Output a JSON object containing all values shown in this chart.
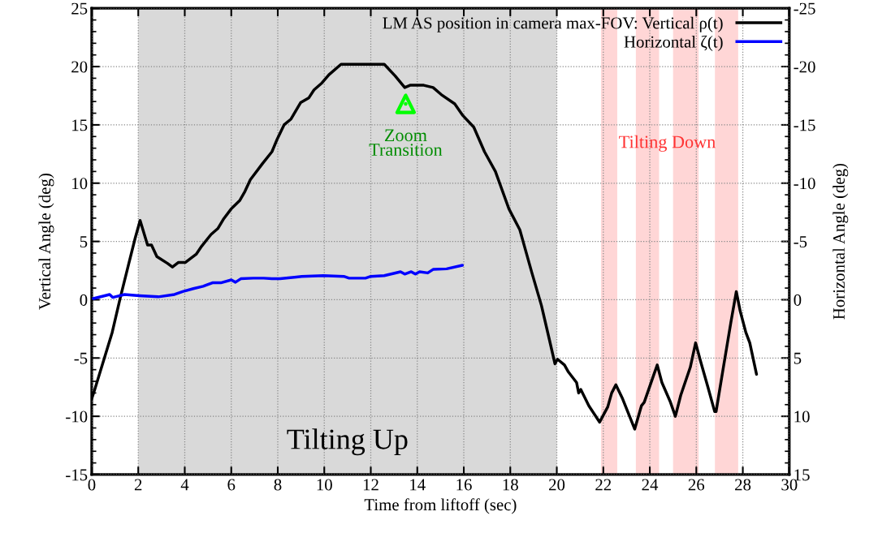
{
  "chart_data": {
    "type": "line",
    "xlabel": "Time from liftoff (sec)",
    "ylabel": "Vertical Angle (deg)",
    "y2label": "Horizontal Angle (deg)",
    "xlim": [
      0,
      30
    ],
    "xticks": [
      0,
      2,
      4,
      6,
      8,
      10,
      12,
      14,
      16,
      18,
      20,
      22,
      24,
      26,
      28,
      30
    ],
    "ylim": [
      -15,
      25
    ],
    "yticks": [
      -15,
      -10,
      -5,
      0,
      5,
      10,
      15,
      20,
      25
    ],
    "y2lim": [
      15,
      -25
    ],
    "y2ticks": [
      -25,
      -20,
      -15,
      -10,
      -5,
      0,
      5,
      10,
      15
    ],
    "grid": true,
    "legend": "top right",
    "line_style": "solid",
    "series": [
      {
        "name": "LM AS position in camera max-FOV: Vertical ρ(t)",
        "color": "#000000",
        "x": [
          0,
          0.13,
          0.88,
          1.23,
          1.58,
          1.87,
          2.08,
          2.4,
          2.57,
          2.8,
          3.27,
          3.47,
          3.73,
          4.03,
          4.49,
          4.73,
          5.13,
          5.42,
          5.66,
          6.0,
          6.36,
          6.59,
          6.82,
          7.35,
          7.75,
          7.98,
          8.27,
          8.57,
          8.98,
          9.33,
          9.56,
          9.9,
          10.2,
          10.72,
          12.58,
          13.05,
          13.46,
          13.69,
          14.05,
          14.28,
          14.68,
          15.03,
          15.61,
          15.96,
          16.43,
          16.89,
          17.36,
          17.94,
          18.41,
          18.93,
          19.34,
          19.69,
          19.92,
          20.03,
          20.33,
          20.5,
          20.85,
          20.94,
          21.03,
          21.38,
          21.84,
          22.19,
          22.36,
          22.54,
          22.83,
          23.35,
          23.64,
          23.76,
          24.16,
          24.32,
          24.52,
          24.87,
          25.1,
          25.33,
          25.74,
          25.97,
          26.2,
          26.5,
          26.79,
          26.85,
          27.14,
          27.49,
          27.72,
          27.89,
          28.13,
          28.3,
          28.59
        ],
        "values": [
          -8.5,
          -7.7,
          -2.8,
          0.2,
          3.0,
          5.3,
          6.8,
          4.7,
          4.7,
          3.7,
          3.1,
          2.8,
          3.2,
          3.2,
          3.9,
          4.6,
          5.6,
          6.1,
          6.9,
          7.8,
          8.5,
          9.3,
          10.3,
          11.7,
          12.7,
          13.8,
          15.0,
          15.5,
          16.9,
          17.3,
          18.0,
          18.6,
          19.3,
          20.2,
          20.2,
          19.2,
          18.2,
          18.4,
          18.4,
          18.4,
          18.2,
          17.6,
          16.8,
          15.8,
          14.8,
          12.7,
          11.0,
          7.8,
          6.0,
          2.3,
          -0.5,
          -3.5,
          -5.5,
          -5.1,
          -5.6,
          -6.2,
          -7.1,
          -8.0,
          -7.7,
          -9.1,
          -10.5,
          -9.2,
          -8.0,
          -7.3,
          -8.5,
          -11.1,
          -9.1,
          -8.8,
          -6.5,
          -5.6,
          -7.1,
          -8.7,
          -10.0,
          -8.2,
          -5.8,
          -3.7,
          -5.4,
          -7.5,
          -9.6,
          -9.6,
          -6.1,
          -1.9,
          0.7,
          -1.0,
          -2.8,
          -3.7,
          -6.4
        ]
      },
      {
        "name": "Horizontal ζ(t)",
        "color": "#0000ff",
        "axis": "y2",
        "x": [
          0.07,
          0.77,
          0.9,
          1.41,
          2.05,
          2.86,
          3.56,
          3.91,
          4.37,
          4.79,
          5.19,
          5.55,
          6.0,
          6.18,
          6.41,
          6.94,
          7.4,
          7.75,
          8.1,
          8.8,
          9.03,
          9.96,
          10.84,
          11.07,
          11.77,
          12.0,
          12.58,
          13.28,
          13.46,
          13.74,
          13.92,
          14.1,
          14.45,
          14.68,
          15.26,
          15.94
        ],
        "values": [
          -0.1,
          -0.45,
          -0.2,
          -0.45,
          -0.35,
          -0.25,
          -0.45,
          -0.7,
          -0.95,
          -1.15,
          -1.45,
          -1.45,
          -1.7,
          -1.5,
          -1.8,
          -1.85,
          -1.85,
          -1.8,
          -1.8,
          -1.95,
          -2.0,
          -2.07,
          -2.0,
          -1.85,
          -1.85,
          -2.0,
          -2.07,
          -2.4,
          -2.2,
          -2.4,
          -2.2,
          -2.4,
          -2.3,
          -2.6,
          -2.65,
          -2.95
        ]
      },
      {
        "type": "scatter",
        "marker": "triangle",
        "color": "#00ff00",
        "x": [
          13.5
        ],
        "values": [
          16.8
        ]
      }
    ],
    "bands": [
      {
        "axis": "x",
        "from": 2,
        "to": 20,
        "label": "Tilting Up",
        "color": "#d9d9d9"
      },
      {
        "axis": "x",
        "from": 21.9,
        "to": 22.6,
        "color": "#ffd6d6"
      },
      {
        "axis": "x",
        "from": 23.4,
        "to": 24.4,
        "color": "#ffd6d6"
      },
      {
        "axis": "x",
        "from": 25.0,
        "to": 26.1,
        "color": "#ffd6d6"
      },
      {
        "axis": "x",
        "from": 26.8,
        "to": 27.8,
        "color": "#ffd6d6"
      }
    ],
    "annotations": [
      {
        "text": "Zoom\nTransition",
        "x": 13.5,
        "y": 16.8
      },
      "Tilting Down"
    ]
  }
}
